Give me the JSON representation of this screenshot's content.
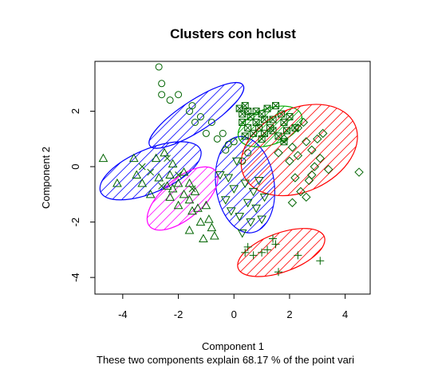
{
  "chart_data": {
    "type": "scatter",
    "title": "Clusters con hclust",
    "xlabel": "Component 1",
    "ylabel": "Component 2",
    "subtitle": "These two components explain 68.17 % of the point vari",
    "xlim": [
      -5.0,
      4.9
    ],
    "ylim": [
      -4.6,
      3.8
    ],
    "xticks": [
      -4,
      -2,
      0,
      2,
      4
    ],
    "yticks": [
      -4,
      -2,
      0,
      2
    ],
    "grid": false,
    "legend": "none",
    "colors": {
      "blue": "#0000ff",
      "red": "#ff0000",
      "green": "#00aa00",
      "magenta": "#ff00ff",
      "point": "#006400"
    },
    "clusters": [
      {
        "id": 1,
        "marker": "circle",
        "color": "blue",
        "ellipse": {
          "cx": -1.35,
          "cy": 1.85,
          "rx": 2.0,
          "ry": 0.55,
          "angle": -33
        },
        "points": [
          [
            -2.7,
            3.6
          ],
          [
            -2.6,
            2.6
          ],
          [
            -2.6,
            3.0
          ],
          [
            -2.3,
            2.4
          ],
          [
            -2.0,
            2.6
          ],
          [
            -1.6,
            2.0
          ],
          [
            -1.5,
            2.2
          ],
          [
            -1.4,
            1.6
          ],
          [
            -1.2,
            1.8
          ],
          [
            -1.0,
            1.2
          ],
          [
            -0.8,
            1.6
          ],
          [
            -0.6,
            1.0
          ],
          [
            -0.4,
            1.2
          ],
          [
            -0.2,
            0.8
          ],
          [
            0.0,
            0.9
          ],
          [
            0.3,
            0.2
          ],
          [
            0.5,
            0.5
          ],
          [
            -0.3,
            0.6
          ]
        ]
      },
      {
        "id": 2,
        "marker": "triangle-up",
        "color": "blue",
        "ellipse": {
          "cx": -3.0,
          "cy": -0.15,
          "rx": 1.95,
          "ry": 0.78,
          "angle": -23
        },
        "points": [
          [
            -4.7,
            0.3
          ],
          [
            -4.2,
            -0.6
          ],
          [
            -3.6,
            0.3
          ],
          [
            -3.3,
            -0.6
          ],
          [
            -3.0,
            -1.0
          ],
          [
            -2.8,
            0.3
          ],
          [
            -2.5,
            0.5
          ],
          [
            -2.3,
            -0.3
          ],
          [
            -2.0,
            -0.6
          ],
          [
            -1.8,
            -0.2
          ],
          [
            -1.6,
            -0.6
          ],
          [
            -3.5,
            -0.3
          ],
          [
            -2.2,
            0.1
          ]
        ]
      },
      {
        "id": 3,
        "marker": "triangle-down",
        "color": "blue",
        "ellipse": {
          "cx": 0.4,
          "cy": -0.65,
          "rx": 1.05,
          "ry": 1.75,
          "angle": -8
        },
        "points": [
          [
            -0.5,
            -0.3
          ],
          [
            -0.3,
            -1.2
          ],
          [
            -0.2,
            -0.4
          ],
          [
            0.0,
            -0.8
          ],
          [
            0.2,
            -1.8
          ],
          [
            0.4,
            -0.6
          ],
          [
            0.5,
            -1.3
          ],
          [
            0.6,
            -2.0
          ],
          [
            0.7,
            -0.9
          ],
          [
            0.8,
            -1.5
          ],
          [
            0.9,
            -0.5
          ],
          [
            1.0,
            -1.9
          ],
          [
            0.1,
            0.2
          ],
          [
            0.3,
            -2.4
          ],
          [
            -0.1,
            -1.6
          ],
          [
            1.1,
            -1.1
          ]
        ]
      },
      {
        "id": 4,
        "marker": "triangle-up",
        "color": "magenta",
        "ellipse": {
          "cx": -1.85,
          "cy": -1.15,
          "rx": 1.55,
          "ry": 0.72,
          "angle": -40
        },
        "points": [
          [
            -2.7,
            -0.4
          ],
          [
            -2.4,
            -0.7
          ],
          [
            -2.2,
            -0.8
          ],
          [
            -2.0,
            -1.4
          ],
          [
            -1.8,
            -1.0
          ],
          [
            -1.6,
            -1.2
          ],
          [
            -1.5,
            -1.6
          ],
          [
            -1.3,
            -1.5
          ],
          [
            -1.2,
            -2.0
          ],
          [
            -1.0,
            -1.4
          ],
          [
            -0.9,
            -1.9
          ],
          [
            -0.8,
            -2.2
          ],
          [
            -0.7,
            -2.5
          ],
          [
            -1.6,
            -2.3
          ],
          [
            -1.1,
            -2.6
          ],
          [
            -2.3,
            -1.1
          ],
          [
            -1.4,
            -0.9
          ]
        ]
      },
      {
        "id": 5,
        "marker": "square-x",
        "color": "green",
        "ellipse": {
          "cx": 1.3,
          "cy": 1.45,
          "rx": 1.2,
          "ry": 0.65,
          "angle": -20
        },
        "points": [
          [
            0.2,
            2.1
          ],
          [
            0.3,
            1.9
          ],
          [
            0.4,
            2.2
          ],
          [
            0.3,
            1.6
          ],
          [
            0.6,
            1.8
          ],
          [
            0.8,
            2.0
          ],
          [
            1.0,
            1.9
          ],
          [
            1.2,
            2.1
          ],
          [
            1.4,
            1.7
          ],
          [
            1.5,
            2.2
          ],
          [
            1.7,
            1.9
          ],
          [
            1.8,
            1.6
          ],
          [
            0.5,
            1.4
          ],
          [
            0.7,
            1.2
          ],
          [
            0.9,
            1.4
          ],
          [
            1.1,
            1.7
          ],
          [
            0.5,
            2.0
          ],
          [
            0.8,
            1.6
          ],
          [
            1.3,
            1.4
          ],
          [
            1.6,
            1.1
          ],
          [
            1.9,
            1.3
          ],
          [
            2.0,
            1.8
          ],
          [
            1.0,
            1.0
          ],
          [
            1.4,
            1.3
          ],
          [
            2.2,
            1.4
          ],
          [
            0.4,
            1.1
          ],
          [
            1.1,
            1.2
          ],
          [
            1.8,
            0.9
          ]
        ]
      },
      {
        "id": 6,
        "marker": "diamond",
        "color": "red",
        "ellipse": {
          "cx": 2.35,
          "cy": 0.6,
          "rx": 2.2,
          "ry": 1.5,
          "angle": -25
        },
        "points": [
          [
            2.1,
            0.7
          ],
          [
            2.3,
            1.4
          ],
          [
            2.5,
            1.6
          ],
          [
            2.6,
            0.9
          ],
          [
            2.8,
            0.6
          ],
          [
            3.0,
            1.0
          ],
          [
            2.2,
            -0.4
          ],
          [
            2.4,
            -0.9
          ],
          [
            2.6,
            -1.1
          ],
          [
            2.8,
            -0.3
          ],
          [
            3.1,
            0.3
          ],
          [
            3.4,
            -0.1
          ],
          [
            2.1,
            -1.3
          ],
          [
            2.0,
            0.2
          ],
          [
            4.5,
            -0.2
          ],
          [
            2.7,
            -0.5
          ],
          [
            2.3,
            0.4
          ],
          [
            1.8,
            1.0
          ],
          [
            1.6,
            0.5
          ],
          [
            3.2,
            1.2
          ],
          [
            2.9,
            0.0
          ]
        ]
      },
      {
        "id": 7,
        "marker": "plus",
        "color": "red",
        "ellipse": {
          "cx": 1.7,
          "cy": -3.1,
          "rx": 1.65,
          "ry": 0.7,
          "angle": -20
        },
        "points": [
          [
            0.5,
            -2.9
          ],
          [
            0.7,
            -3.2
          ],
          [
            1.0,
            -3.1
          ],
          [
            1.4,
            -2.6
          ],
          [
            1.5,
            -2.8
          ],
          [
            1.6,
            -3.8
          ],
          [
            2.3,
            -3.2
          ],
          [
            3.1,
            -3.4
          ],
          [
            0.4,
            -3.1
          ],
          [
            1.2,
            -3.0
          ]
        ]
      },
      {
        "id": 8,
        "marker": "cross",
        "color": "blue",
        "ellipse": null,
        "points": [
          [
            -3.3,
            0.0
          ],
          [
            -2.6,
            -0.7
          ],
          [
            -2.0,
            -0.3
          ],
          [
            -1.5,
            -0.8
          ],
          [
            -3.0,
            -0.2
          ],
          [
            -2.4,
            0.3
          ]
        ]
      }
    ]
  }
}
